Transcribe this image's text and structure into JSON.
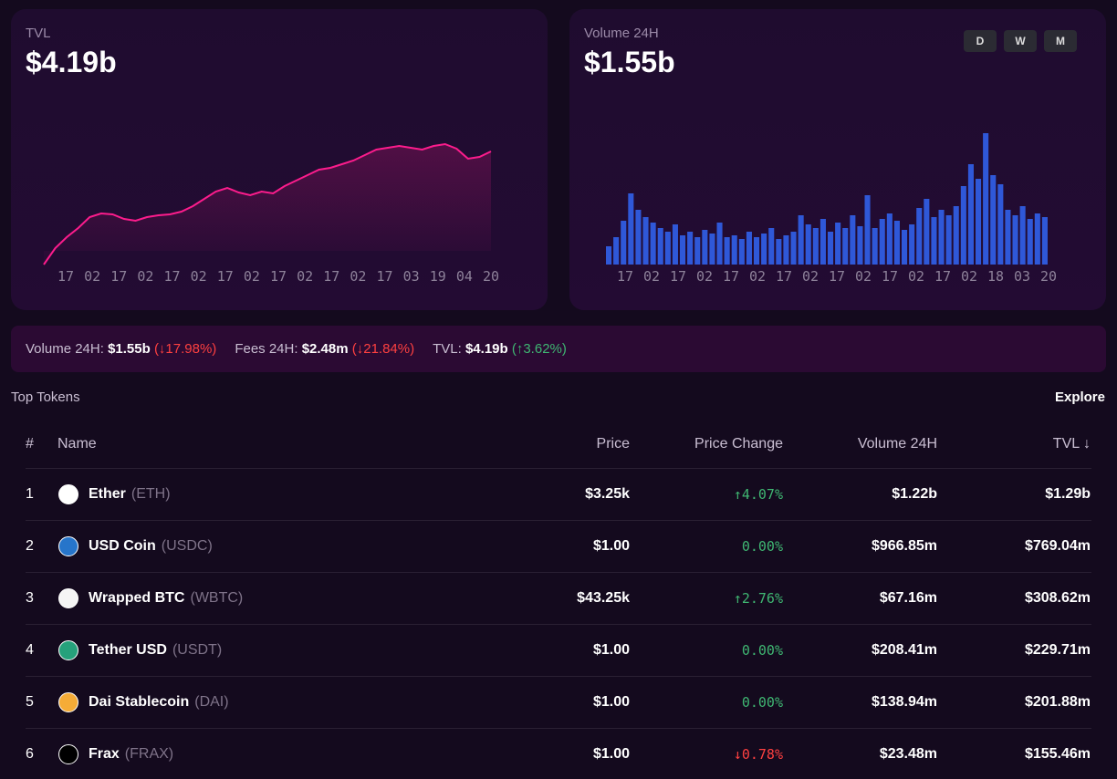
{
  "tvl_card": {
    "label": "TVL",
    "value": "$4.19b",
    "chart_data": {
      "type": "line",
      "color": "#fc1c8c",
      "values": [
        0,
        18,
        30,
        40,
        52,
        56,
        55,
        50,
        48,
        52,
        54,
        55,
        58,
        64,
        72,
        80,
        84,
        79,
        76,
        80,
        78,
        86,
        92,
        98,
        104,
        106,
        110,
        114,
        120,
        126,
        128,
        130,
        128,
        126,
        130,
        132,
        127,
        116,
        118,
        124
      ],
      "xticks": [
        "17",
        "02",
        "17",
        "02",
        "17",
        "02",
        "17",
        "02",
        "17",
        "02",
        "17",
        "02",
        "17",
        "03",
        "19",
        "04",
        "20"
      ]
    }
  },
  "volume_card": {
    "label": "Volume 24H",
    "value": "$1.55b",
    "buttons": [
      "D",
      "W",
      "M"
    ],
    "chart_data": {
      "type": "bar",
      "color": "#2f58d8",
      "values": [
        20,
        30,
        48,
        78,
        60,
        52,
        46,
        40,
        36,
        44,
        32,
        36,
        30,
        38,
        34,
        46,
        30,
        32,
        28,
        36,
        30,
        34,
        40,
        28,
        32,
        36,
        54,
        44,
        40,
        50,
        36,
        46,
        40,
        54,
        42,
        76,
        40,
        50,
        56,
        48,
        38,
        44,
        62,
        72,
        52,
        60,
        54,
        64,
        86,
        110,
        94,
        144,
        98,
        88,
        60,
        54,
        64,
        50,
        56,
        52
      ],
      "xticks": [
        "17",
        "02",
        "17",
        "02",
        "17",
        "02",
        "17",
        "02",
        "17",
        "02",
        "17",
        "02",
        "17",
        "02",
        "18",
        "03",
        "20"
      ]
    }
  },
  "stats": [
    {
      "label": "Volume 24H:",
      "value": "$1.55b",
      "change": "(↓17.98%)",
      "direction": "down"
    },
    {
      "label": "Fees 24H:",
      "value": "$2.48m",
      "change": "(↓21.84%)",
      "direction": "down"
    },
    {
      "label": "TVL:",
      "value": "$4.19b",
      "change": "(↑3.62%)",
      "direction": "up"
    }
  ],
  "section": {
    "title": "Top Tokens",
    "link": "Explore"
  },
  "table": {
    "headers": [
      "#",
      "Name",
      "Price",
      "Price Change",
      "Volume 24H",
      "TVL ↓"
    ],
    "rows": [
      {
        "rank": "1",
        "name": "Ether",
        "symbol": "(ETH)",
        "price": "$3.25k",
        "change": "↑4.07%",
        "direction": "up",
        "volume": "$1.22b",
        "tvl": "$1.29b",
        "icon_color": "#ffffff"
      },
      {
        "rank": "2",
        "name": "USD Coin",
        "symbol": "(USDC)",
        "price": "$1.00",
        "change": "0.00%",
        "direction": "up",
        "volume": "$966.85m",
        "tvl": "$769.04m",
        "icon_color": "#2775ca"
      },
      {
        "rank": "3",
        "name": "Wrapped BTC",
        "symbol": "(WBTC)",
        "price": "$43.25k",
        "change": "↑2.76%",
        "direction": "up",
        "volume": "$67.16m",
        "tvl": "$308.62m",
        "icon_color": "#f5f5f5"
      },
      {
        "rank": "4",
        "name": "Tether USD",
        "symbol": "(USDT)",
        "price": "$1.00",
        "change": "0.00%",
        "direction": "up",
        "volume": "$208.41m",
        "tvl": "$229.71m",
        "icon_color": "#26a17b"
      },
      {
        "rank": "5",
        "name": "Dai Stablecoin",
        "symbol": "(DAI)",
        "price": "$1.00",
        "change": "0.00%",
        "direction": "up",
        "volume": "$138.94m",
        "tvl": "$201.88m",
        "icon_color": "#f5ac37"
      },
      {
        "rank": "6",
        "name": "Frax",
        "symbol": "(FRAX)",
        "price": "$1.00",
        "change": "↓0.78%",
        "direction": "down",
        "volume": "$23.48m",
        "tvl": "$155.46m",
        "icon_color": "#000000"
      }
    ]
  }
}
